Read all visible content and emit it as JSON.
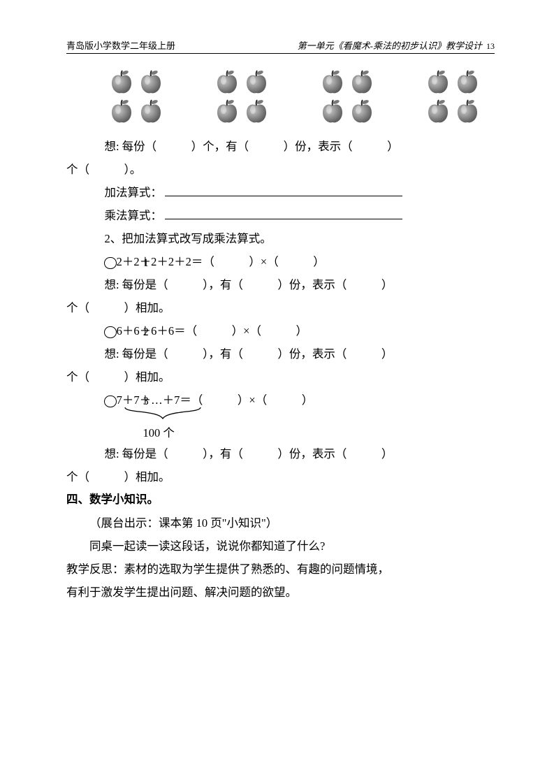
{
  "header": {
    "left": "青岛版小学数学二年级上册",
    "right": "第一单元《看魔术-乘法的初步认识》教学设计",
    "page_num": "13"
  },
  "apples": {
    "groups": 4,
    "per_group_cols": 2,
    "per_group_rows": 2,
    "apple_color_light": "#c9c9c9",
    "apple_color_dark": "#5a5a5a",
    "stem_color": "#2b2b2b",
    "leaf_color": "#787878"
  },
  "think_line": "想: 每份（　　　）个，有（　　　）份，表示（　　　）",
  "think_cont": "个（　　　）。",
  "add_label": "加法算式：",
  "mult_label": "乘法算式：",
  "q2_title": "2、把加法算式改写成乘法算式。",
  "q2_items": [
    {
      "num": "①",
      "expr": "2＋2＋2＋2＋2＝（　　　）×（　　　）",
      "think": "想: 每份是（　　　），有（　　　）份，表示（　　　）",
      "think_cont": "个（　　　）相加。"
    },
    {
      "num": "②",
      "expr": "6＋6＋6＋6＝（　　　）×（　　　）",
      "think": "想: 每份是（　　　），有（　　　）份，表示（　　　）",
      "think_cont": "个（　　　）相加。"
    },
    {
      "num": "③",
      "expr": "7＋7＋…＋7＝（　　　）×（　　　）",
      "hundred": "100 个",
      "think": "想: 每份是（　　　），有（　　　）份，表示（　　　）",
      "think_cont": "个（　　　）相加。"
    }
  ],
  "section4": "四、数学小知识。",
  "sec4_line1": "（展台出示：课本第 10 页\"小知识\"）",
  "sec4_line2": "同桌一起读一读这段话，说说你都知道了什么?",
  "reflect_label": "教学反思：",
  "reflect_text1": "素材的选取为学生提供了熟悉的、有趣的问题情境，",
  "reflect_text2": "有利于激发学生提出问题、解决问题的欲望。",
  "colors": {
    "text": "#000000",
    "background": "#ffffff",
    "border": "#000000"
  },
  "typography": {
    "body_font": "SimSun",
    "heading_font": "SimHei",
    "header_italic_font": "KaiTi",
    "body_size_pt": 12,
    "line_height": 2.0
  }
}
